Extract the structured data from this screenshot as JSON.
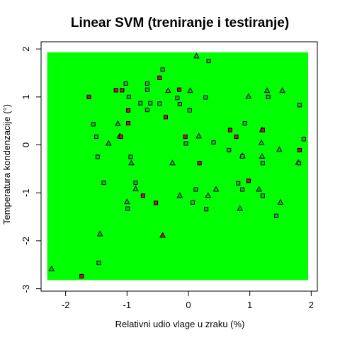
{
  "chart_data": {
    "type": "scatter",
    "title": "Linear SVM (treniranje i testiranje)",
    "xlabel": "Relativni udio vlage u zraku (%)",
    "ylabel": "Temperatura kondenzacije (°)",
    "xlim": [
      -2.4,
      2.1
    ],
    "ylim": [
      -3.05,
      2.15
    ],
    "x_ticks": [
      -2,
      -1,
      0,
      1,
      2
    ],
    "y_ticks": [
      -3,
      -2,
      -1,
      0,
      1,
      2
    ],
    "x_tick_labels": [
      "-2",
      "-1",
      "0",
      "1",
      "2"
    ],
    "y_tick_labels": [
      "-3",
      "-2",
      "-1",
      "0",
      "1",
      "2"
    ],
    "decision_region": {
      "x_range": [
        -2.3,
        1.95
      ],
      "y_range": [
        -2.82,
        1.93
      ],
      "color": "#00ff00"
    },
    "colors": {
      "region": "#00ff00",
      "class_green": "#2fa84f",
      "class_red": "#e0004f",
      "outline": "#000000"
    },
    "points": [
      {
        "x": 0.13,
        "y": 1.85,
        "shape": "triangle",
        "cls": "green"
      },
      {
        "x": 0.33,
        "y": 1.75,
        "shape": "square",
        "cls": "green"
      },
      {
        "x": -0.42,
        "y": 1.57,
        "shape": "square",
        "cls": "green"
      },
      {
        "x": -0.47,
        "y": 1.4,
        "shape": "square",
        "cls": "red"
      },
      {
        "x": -0.33,
        "y": 1.13,
        "shape": "triangle",
        "cls": "green"
      },
      {
        "x": -0.15,
        "y": 1.15,
        "shape": "square",
        "cls": "red"
      },
      {
        "x": 0.03,
        "y": 1.13,
        "shape": "triangle",
        "cls": "green"
      },
      {
        "x": -0.67,
        "y": 1.28,
        "shape": "square",
        "cls": "green"
      },
      {
        "x": -0.67,
        "y": 1.15,
        "shape": "square",
        "cls": "green"
      },
      {
        "x": -1.02,
        "y": 1.28,
        "shape": "square",
        "cls": "green"
      },
      {
        "x": -1.18,
        "y": 1.14,
        "shape": "square",
        "cls": "red"
      },
      {
        "x": -1.08,
        "y": 1.14,
        "shape": "square",
        "cls": "red"
      },
      {
        "x": -1.62,
        "y": 1.0,
        "shape": "square",
        "cls": "red"
      },
      {
        "x": -0.97,
        "y": 1.0,
        "shape": "square",
        "cls": "green"
      },
      {
        "x": -0.18,
        "y": 0.98,
        "shape": "square",
        "cls": "green"
      },
      {
        "x": 0.28,
        "y": 0.99,
        "shape": "square",
        "cls": "green"
      },
      {
        "x": -0.78,
        "y": 0.87,
        "shape": "square",
        "cls": "green"
      },
      {
        "x": -0.62,
        "y": 0.87,
        "shape": "square",
        "cls": "green"
      },
      {
        "x": -0.47,
        "y": 0.86,
        "shape": "square",
        "cls": "green"
      },
      {
        "x": -0.14,
        "y": 0.85,
        "shape": "square",
        "cls": "green"
      },
      {
        "x": -0.98,
        "y": 0.72,
        "shape": "square",
        "cls": "red"
      },
      {
        "x": -0.67,
        "y": 0.73,
        "shape": "square",
        "cls": "green"
      },
      {
        "x": 0.02,
        "y": 0.72,
        "shape": "square",
        "cls": "green"
      },
      {
        "x": 0.98,
        "y": 1.01,
        "shape": "triangle",
        "cls": "green"
      },
      {
        "x": 1.28,
        "y": 1.13,
        "shape": "triangle",
        "cls": "green"
      },
      {
        "x": 1.53,
        "y": 1.13,
        "shape": "triangle",
        "cls": "green"
      },
      {
        "x": 1.3,
        "y": 1.0,
        "shape": "square",
        "cls": "green"
      },
      {
        "x": 1.81,
        "y": 0.83,
        "shape": "square",
        "cls": "green"
      },
      {
        "x": -0.37,
        "y": 0.58,
        "shape": "square",
        "cls": "red"
      },
      {
        "x": 0.92,
        "y": 0.45,
        "shape": "square",
        "cls": "green"
      },
      {
        "x": -1.55,
        "y": 0.43,
        "shape": "square",
        "cls": "green"
      },
      {
        "x": -1.15,
        "y": 0.44,
        "shape": "triangle",
        "cls": "green"
      },
      {
        "x": -0.98,
        "y": 0.45,
        "shape": "square",
        "cls": "red"
      },
      {
        "x": 0.68,
        "y": 0.31,
        "shape": "square",
        "cls": "red"
      },
      {
        "x": 1.2,
        "y": 0.31,
        "shape": "triangle",
        "cls": "green"
      },
      {
        "x": 1.21,
        "y": 0.31,
        "shape": "square",
        "cls": "red"
      },
      {
        "x": -1.5,
        "y": 0.17,
        "shape": "square",
        "cls": "green"
      },
      {
        "x": -1.12,
        "y": 0.18,
        "shape": "triangle",
        "cls": "green"
      },
      {
        "x": -1.1,
        "y": 0.17,
        "shape": "square",
        "cls": "red"
      },
      {
        "x": -0.05,
        "y": 0.17,
        "shape": "square",
        "cls": "red"
      },
      {
        "x": 0.17,
        "y": 0.18,
        "shape": "triangle",
        "cls": "green"
      },
      {
        "x": 0.78,
        "y": 0.17,
        "shape": "square",
        "cls": "red"
      },
      {
        "x": -1.3,
        "y": 0.03,
        "shape": "triangle",
        "cls": "green"
      },
      {
        "x": -0.04,
        "y": 0.03,
        "shape": "square",
        "cls": "green"
      },
      {
        "x": 0.41,
        "y": 0.05,
        "shape": "square",
        "cls": "green"
      },
      {
        "x": 1.19,
        "y": 0.04,
        "shape": "triangle",
        "cls": "green"
      },
      {
        "x": 1.88,
        "y": 0.12,
        "shape": "square",
        "cls": "green"
      },
      {
        "x": 0.66,
        "y": -0.11,
        "shape": "square",
        "cls": "green"
      },
      {
        "x": 1.48,
        "y": -0.1,
        "shape": "triangle",
        "cls": "green"
      },
      {
        "x": 1.81,
        "y": -0.11,
        "shape": "square",
        "cls": "red"
      },
      {
        "x": -1.48,
        "y": -0.25,
        "shape": "square",
        "cls": "green"
      },
      {
        "x": -0.94,
        "y": -0.25,
        "shape": "square",
        "cls": "green"
      },
      {
        "x": 0.88,
        "y": -0.23,
        "shape": "triangle",
        "cls": "green"
      },
      {
        "x": 0.88,
        "y": -0.24,
        "shape": "square",
        "cls": "green"
      },
      {
        "x": 1.2,
        "y": -0.24,
        "shape": "triangle",
        "cls": "green"
      },
      {
        "x": -0.93,
        "y": -0.38,
        "shape": "triangle",
        "cls": "green"
      },
      {
        "x": -0.26,
        "y": -0.38,
        "shape": "triangle",
        "cls": "green"
      },
      {
        "x": 0.18,
        "y": -0.38,
        "shape": "square",
        "cls": "red"
      },
      {
        "x": 1.21,
        "y": -0.38,
        "shape": "square",
        "cls": "green"
      },
      {
        "x": 1.79,
        "y": -0.37,
        "shape": "triangle",
        "cls": "green"
      },
      {
        "x": 1.8,
        "y": -0.38,
        "shape": "square",
        "cls": "green"
      },
      {
        "x": -1.38,
        "y": -0.79,
        "shape": "square",
        "cls": "green"
      },
      {
        "x": -0.86,
        "y": -0.79,
        "shape": "square",
        "cls": "green"
      },
      {
        "x": 0.81,
        "y": -0.8,
        "shape": "square",
        "cls": "green"
      },
      {
        "x": 0.98,
        "y": -0.75,
        "shape": "square",
        "cls": "red"
      },
      {
        "x": -0.86,
        "y": -0.92,
        "shape": "triangle",
        "cls": "green"
      },
      {
        "x": 0.12,
        "y": -0.93,
        "shape": "square",
        "cls": "green"
      },
      {
        "x": 0.45,
        "y": -0.93,
        "shape": "triangle",
        "cls": "green"
      },
      {
        "x": 0.88,
        "y": -0.93,
        "shape": "square",
        "cls": "green"
      },
      {
        "x": 1.15,
        "y": -0.93,
        "shape": "triangle",
        "cls": "green"
      },
      {
        "x": -0.74,
        "y": -1.06,
        "shape": "square",
        "cls": "red"
      },
      {
        "x": -0.14,
        "y": -1.06,
        "shape": "triangle",
        "cls": "green"
      },
      {
        "x": 0.32,
        "y": -1.06,
        "shape": "triangle",
        "cls": "green"
      },
      {
        "x": 1.21,
        "y": -1.06,
        "shape": "square",
        "cls": "green"
      },
      {
        "x": -1.0,
        "y": -1.19,
        "shape": "triangle",
        "cls": "green"
      },
      {
        "x": -0.53,
        "y": -1.21,
        "shape": "square",
        "cls": "red"
      },
      {
        "x": 0.07,
        "y": -1.2,
        "shape": "square",
        "cls": "green"
      },
      {
        "x": 1.5,
        "y": -1.2,
        "shape": "triangle",
        "cls": "green"
      },
      {
        "x": -0.99,
        "y": -1.33,
        "shape": "square",
        "cls": "green"
      },
      {
        "x": 0.29,
        "y": -1.34,
        "shape": "square",
        "cls": "green"
      },
      {
        "x": 0.84,
        "y": -1.33,
        "shape": "triangle",
        "cls": "green"
      },
      {
        "x": 1.43,
        "y": -1.48,
        "shape": "square",
        "cls": "green"
      },
      {
        "x": -1.44,
        "y": -1.86,
        "shape": "triangle",
        "cls": "green"
      },
      {
        "x": -0.42,
        "y": -1.89,
        "shape": "triangle",
        "cls": "red"
      },
      {
        "x": -1.46,
        "y": -2.46,
        "shape": "square",
        "cls": "green"
      },
      {
        "x": -2.23,
        "y": -2.59,
        "shape": "triangle",
        "cls": "green"
      },
      {
        "x": -1.74,
        "y": -2.74,
        "shape": "square",
        "cls": "red"
      }
    ]
  }
}
